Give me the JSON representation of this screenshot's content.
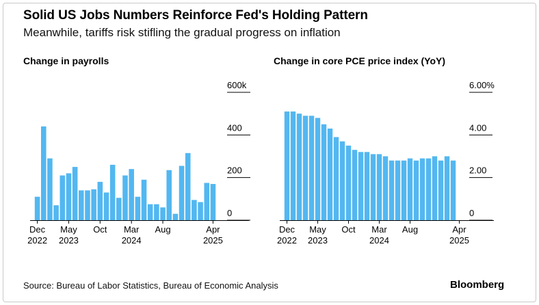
{
  "title": "Solid US Jobs Numbers Reinforce Fed's Holding Pattern",
  "subtitle": "Meanwhile, tariffs risk stifling the gradual progress on inflation",
  "source": "Source: Bureau of Labor Statistics, Bureau of Economic Analysis",
  "brand": "Bloomberg",
  "bar_color": "#53b7f0",
  "chart_data": [
    {
      "type": "bar",
      "title": "Change in payrolls",
      "x_start": "Dec 2022",
      "frequency": "monthly",
      "x_ticks": [
        {
          "index": 0,
          "line1": "Dec",
          "line2": "2022"
        },
        {
          "index": 5,
          "line1": "May",
          "line2": "2023"
        },
        {
          "index": 10,
          "line1": "Oct",
          "line2": ""
        },
        {
          "index": 15,
          "line1": "Mar",
          "line2": "2024"
        },
        {
          "index": 20,
          "line1": "Aug",
          "line2": ""
        },
        {
          "index": 28,
          "line1": "Apr",
          "line2": "2025"
        }
      ],
      "y_ticks": [
        {
          "value": 600,
          "label": "600k"
        },
        {
          "value": 400,
          "label": "400"
        },
        {
          "value": 200,
          "label": "200"
        },
        {
          "value": 0,
          "label": "0"
        }
      ],
      "ylim": [
        0,
        600
      ],
      "values": [
        110,
        440,
        290,
        70,
        210,
        220,
        250,
        140,
        140,
        145,
        180,
        130,
        260,
        105,
        210,
        240,
        110,
        190,
        75,
        75,
        60,
        235,
        30,
        255,
        315,
        95,
        85,
        175,
        170
      ]
    },
    {
      "type": "bar",
      "title": "Change in core PCE price index (YoY)",
      "x_start": "Dec 2022",
      "frequency": "monthly",
      "x_ticks": [
        {
          "index": 0,
          "line1": "Dec",
          "line2": "2022"
        },
        {
          "index": 5,
          "line1": "May",
          "line2": "2023"
        },
        {
          "index": 10,
          "line1": "Oct",
          "line2": ""
        },
        {
          "index": 15,
          "line1": "Mar",
          "line2": "2024"
        },
        {
          "index": 20,
          "line1": "Aug",
          "line2": ""
        },
        {
          "index": 28,
          "line1": "Apr",
          "line2": "2025"
        }
      ],
      "y_ticks": [
        {
          "value": 6,
          "label": "6.00%"
        },
        {
          "value": 4,
          "label": "4.00"
        },
        {
          "value": 2,
          "label": "2.00"
        },
        {
          "value": 0,
          "label": "0"
        }
      ],
      "ylim": [
        0,
        6
      ],
      "values": [
        5.1,
        5.1,
        5.0,
        4.9,
        4.9,
        4.8,
        4.5,
        4.3,
        3.9,
        3.7,
        3.5,
        3.3,
        3.2,
        3.2,
        3.1,
        3.1,
        3.0,
        2.8,
        2.8,
        2.8,
        2.9,
        2.8,
        2.9,
        2.9,
        3.0,
        2.8,
        3.0,
        2.8
      ]
    }
  ]
}
